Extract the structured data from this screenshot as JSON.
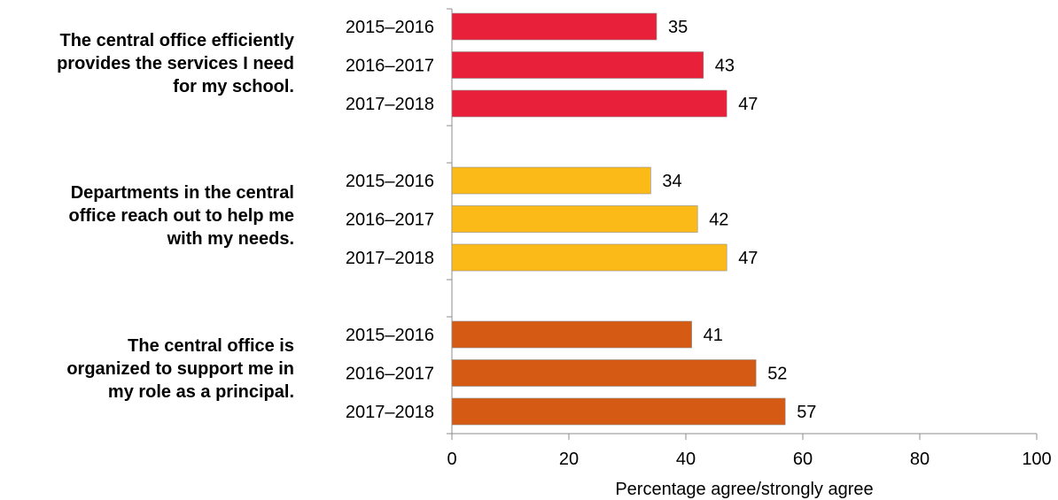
{
  "chart_data": {
    "type": "bar",
    "orientation": "horizontal",
    "xlabel": "Percentage agree/strongly agree",
    "xlim": [
      0,
      100
    ],
    "xticks": [
      "0",
      "20",
      "40",
      "60",
      "80",
      "100"
    ],
    "grid": false,
    "groups": [
      {
        "label_lines": [
          "The central office efficiently",
          "provides the services I need",
          "for my school."
        ],
        "color": "#e8203a",
        "categories": [
          "2015–2016",
          "2016–2017",
          "2017–2018"
        ],
        "values": [
          35,
          43,
          47
        ]
      },
      {
        "label_lines": [
          "Departments in the central",
          "office reach out to help me",
          "with my needs."
        ],
        "color": "#fcba18",
        "categories": [
          "2015–2016",
          "2016–2017",
          "2017–2018"
        ],
        "values": [
          34,
          42,
          47
        ]
      },
      {
        "label_lines": [
          "The central office is",
          "organized to support me in",
          "my role as a principal."
        ],
        "color": "#d55a14",
        "categories": [
          "2015–2016",
          "2016–2017",
          "2017–2018"
        ],
        "values": [
          41,
          52,
          57
        ]
      }
    ]
  }
}
